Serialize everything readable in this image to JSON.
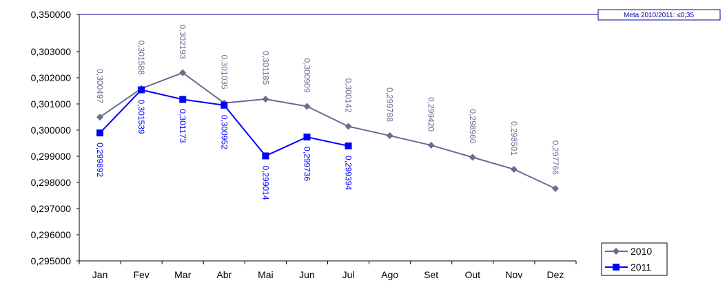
{
  "chart_data": {
    "type": "line",
    "categories": [
      "Jan",
      "Fev",
      "Mar",
      "Abr",
      "Mai",
      "Jun",
      "Jul",
      "Ago",
      "Set",
      "Out",
      "Nov",
      "Dez"
    ],
    "series": [
      {
        "name": "2010",
        "color": "#6b6b90",
        "marker": "diamond",
        "values": [
          0.300497,
          0.301588,
          0.302193,
          0.301035,
          0.301185,
          0.300909,
          0.300142,
          0.299788,
          0.29942,
          0.29896,
          0.298501,
          0.297766
        ],
        "value_labels": [
          "0,300497",
          "0,301588",
          "0,302193",
          "0,301035",
          "0,301185",
          "0,300909",
          "0,300142",
          "0,299788",
          "0,299420",
          "0,298960",
          "0,298501",
          "0,297766"
        ]
      },
      {
        "name": "2011",
        "color": "#0000ff",
        "marker": "square",
        "values": [
          0.299892,
          0.301539,
          0.301173,
          0.300952,
          0.299014,
          0.299736,
          0.299394,
          null,
          null,
          null,
          null,
          null
        ],
        "value_labels": [
          "0,299892",
          "0,301539",
          "0,301173",
          "0,300952",
          "0,299014",
          "0,299736",
          "0,299394",
          null,
          null,
          null,
          null,
          null
        ]
      }
    ],
    "ylim": [
      0.295,
      0.35
    ],
    "yticks": [
      {
        "value": 0.295,
        "label": "0,295000"
      },
      {
        "value": 0.296,
        "label": "0,296000"
      },
      {
        "value": 0.297,
        "label": "0,297000"
      },
      {
        "value": 0.298,
        "label": "0,298000"
      },
      {
        "value": 0.299,
        "label": "0,299000"
      },
      {
        "value": 0.3,
        "label": "0,300000"
      },
      {
        "value": 0.301,
        "label": "0,301000"
      },
      {
        "value": 0.302,
        "label": "0,302000"
      },
      {
        "value": 0.303,
        "label": "0,303000"
      },
      {
        "value": 0.35,
        "label": "0,350000"
      }
    ],
    "target": {
      "value": 0.35,
      "label": "Meta 2010/2011: ≤0,35",
      "color": "#00009c"
    },
    "legend": "bottom-right",
    "grid": false
  }
}
